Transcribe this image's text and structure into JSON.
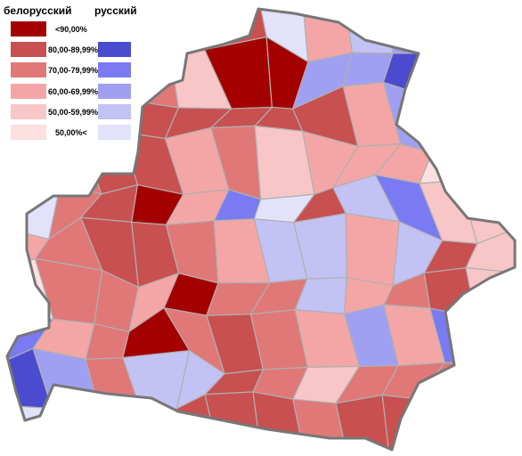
{
  "legend": {
    "left_title": "белорусский",
    "right_title": "русский",
    "items": [
      "<90,00%",
      "80,00-89,99%",
      "70,00-79,99%",
      "60,00-69,99%",
      "50,00-59,99%",
      "50,00%<"
    ]
  }
}
